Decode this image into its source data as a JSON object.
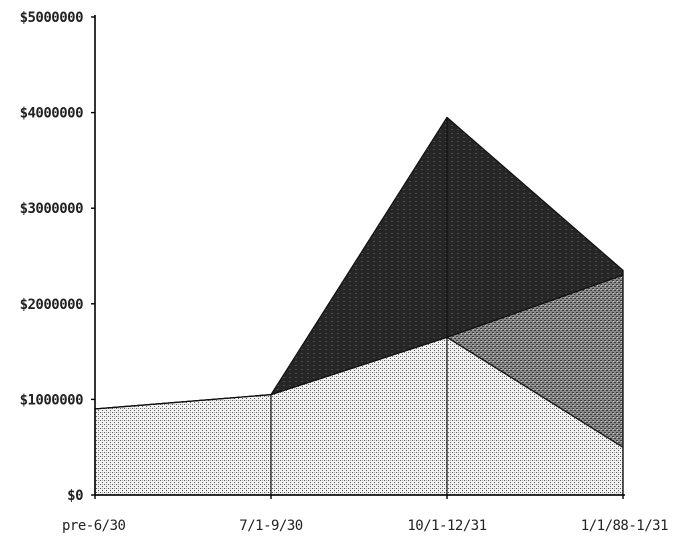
{
  "chart_data": {
    "type": "area",
    "stacked": true,
    "categories": [
      "pre-6/30",
      "7/1-9/30",
      "10/1-12/31",
      "1/1/88-1/31"
    ],
    "ytick_labels": [
      "$0",
      "$1000000",
      "$2000000",
      "$3000000",
      "$4000000",
      "$5000000"
    ],
    "ylim": [
      0,
      5000000
    ],
    "grid": false,
    "series": [
      {
        "values": [
          900000,
          1050000,
          1650000,
          500000
        ],
        "color": "#d8d8d8"
      },
      {
        "values": [
          0,
          0,
          0,
          1800000
        ],
        "color": "#7a7a7a"
      },
      {
        "values": [
          0,
          0,
          2300000,
          50000
        ],
        "color": "#2b2b2b"
      }
    ]
  }
}
